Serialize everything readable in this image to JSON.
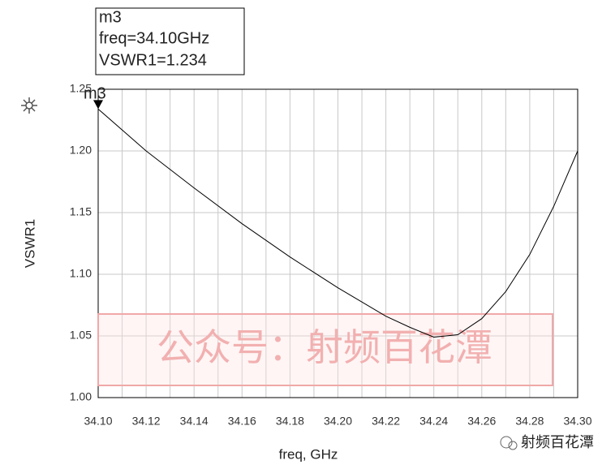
{
  "chart_data": {
    "type": "line",
    "x_label": "freq, GHz",
    "y_label": "VSWR1",
    "x": [
      34.1,
      34.12,
      34.14,
      34.16,
      34.18,
      34.2,
      34.22,
      34.23,
      34.24,
      34.25,
      34.26,
      34.27,
      34.28,
      34.29,
      34.3
    ],
    "values": [
      1.234,
      1.2,
      1.17,
      1.141,
      1.114,
      1.089,
      1.066,
      1.057,
      1.049,
      1.051,
      1.064,
      1.086,
      1.116,
      1.155,
      1.2
    ],
    "color": "#000000",
    "xlim": [
      34.1,
      34.3
    ],
    "xticks": [
      {
        "value": 34.1,
        "label": "34.10"
      },
      34.12,
      34.14,
      34.16,
      34.18,
      {
        "value": 34.2,
        "label": "34.20"
      },
      34.22,
      34.24,
      34.26,
      34.28,
      {
        "value": 34.3,
        "label": "34.30"
      }
    ],
    "xminor": [
      34.11,
      34.13,
      34.15,
      34.17,
      34.19,
      34.21,
      34.23,
      34.25,
      34.27,
      34.29
    ],
    "ylim": [
      1.0,
      1.25
    ],
    "yticks": [
      {
        "value": 1.0,
        "label": "1.00"
      },
      1.05,
      {
        "value": 1.1,
        "label": "1.10"
      },
      1.15,
      {
        "value": 1.2,
        "label": "1.20"
      },
      1.25
    ],
    "grid": true,
    "marker": {
      "name": "m3",
      "lines": [
        "m3",
        "freq=34.10GHz",
        "VSWR1=1.234"
      ]
    },
    "watermark": "公众号：射频百花潭",
    "footer": "射频百花潭"
  }
}
